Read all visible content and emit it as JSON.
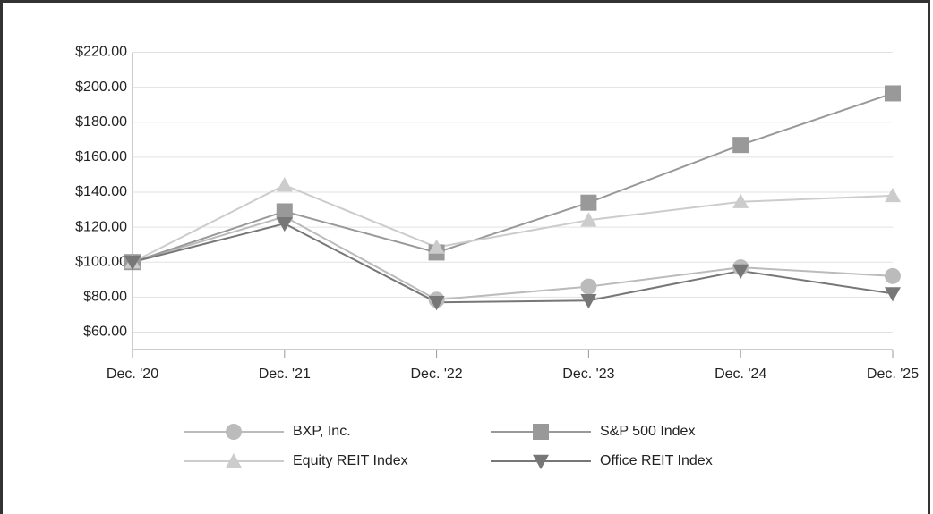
{
  "chart_data": {
    "type": "line",
    "categories": [
      "Dec. '20",
      "Dec. '21",
      "Dec. '22",
      "Dec. '23",
      "Dec. '24",
      "Dec. '25"
    ],
    "series": [
      {
        "name": "BXP, Inc.",
        "color": "#bbbbbb",
        "marker": "circle",
        "values": [
          100,
          126,
          78.5,
          86,
          97,
          92
        ]
      },
      {
        "name": "S&P 500 Index",
        "color": "#999999",
        "marker": "square",
        "values": [
          100,
          129,
          105.5,
          134,
          167,
          196.5
        ]
      },
      {
        "name": "Equity REIT Index",
        "color": "#cccccc",
        "marker": "triangle",
        "values": [
          100,
          144,
          108.5,
          124,
          134.5,
          138
        ]
      },
      {
        "name": "Office REIT Index",
        "color": "#777777",
        "marker": "triangle-down",
        "values": [
          100,
          122,
          77,
          78,
          95,
          82
        ]
      }
    ],
    "ylim": [
      50,
      220
    ],
    "yticks": [
      {
        "value": 60,
        "label": "$60.00"
      },
      {
        "value": 80,
        "label": "$80.00"
      },
      {
        "value": 100,
        "label": "$100.00"
      },
      {
        "value": 120,
        "label": "$120.00"
      },
      {
        "value": 140,
        "label": "$140.00"
      },
      {
        "value": 160,
        "label": "$160.00"
      },
      {
        "value": 180,
        "label": "$180.00"
      },
      {
        "value": 200,
        "label": "$200.00"
      },
      {
        "value": 220,
        "label": "$220.00"
      }
    ],
    "grid": true
  }
}
